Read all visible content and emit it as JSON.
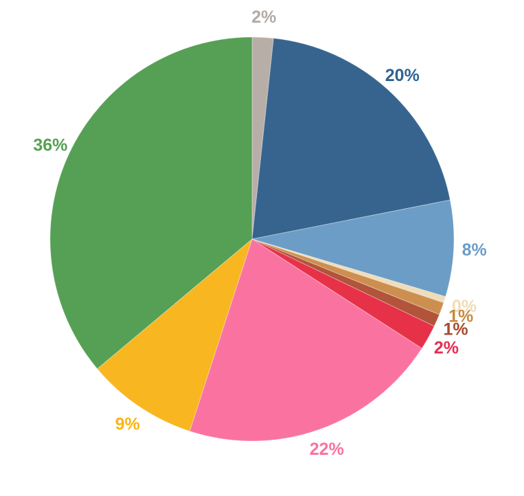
{
  "page": {
    "background_color": "#ffffff"
  },
  "chart_data": {
    "type": "pie",
    "title": "",
    "legend_position": "none",
    "labels_position": "outside",
    "direction": "clockwise",
    "start_angle_deg": 0,
    "unit": "%",
    "values": [
      2,
      20,
      8,
      0,
      1,
      1,
      2,
      22,
      9,
      36
    ],
    "slices": [
      {
        "id": "gray",
        "label": "2%",
        "value": 2,
        "render_pct": 1.7,
        "color": "#b7aea8",
        "label_color": "#b3aaa4"
      },
      {
        "id": "dark-blue",
        "label": "20%",
        "value": 20,
        "render_pct": 20.2,
        "color": "#36648e",
        "label_color": "#2f6293"
      },
      {
        "id": "light-blue",
        "label": "8%",
        "value": 8,
        "render_pct": 7.7,
        "color": "#6c9dc6",
        "label_color": "#6c9dc8"
      },
      {
        "id": "cream",
        "label": "0%",
        "value": 0,
        "render_pct": 0.5,
        "color": "#efdcba",
        "label_color": "#f0ddb8"
      },
      {
        "id": "tan",
        "label": "1%",
        "value": 1,
        "render_pct": 1.0,
        "color": "#cd8f4f",
        "label_color": "#c9883f"
      },
      {
        "id": "brown",
        "label": "1%",
        "value": 1,
        "render_pct": 1.0,
        "color": "#b2543a",
        "label_color": "#a64b30"
      },
      {
        "id": "red",
        "label": "2%",
        "value": 2,
        "render_pct": 2.0,
        "color": "#e63149",
        "label_color": "#e82c4e"
      },
      {
        "id": "pink",
        "label": "22%",
        "value": 22,
        "render_pct": 20.9,
        "color": "#fa73a0",
        "label_color": "#f9719f"
      },
      {
        "id": "yellow",
        "label": "9%",
        "value": 9,
        "render_pct": 8.9,
        "color": "#f8b620",
        "label_color": "#f9b513"
      },
      {
        "id": "green",
        "label": "36%",
        "value": 36,
        "render_pct": 36.1,
        "color": "#55a054",
        "label_color": "#55a054"
      }
    ]
  }
}
